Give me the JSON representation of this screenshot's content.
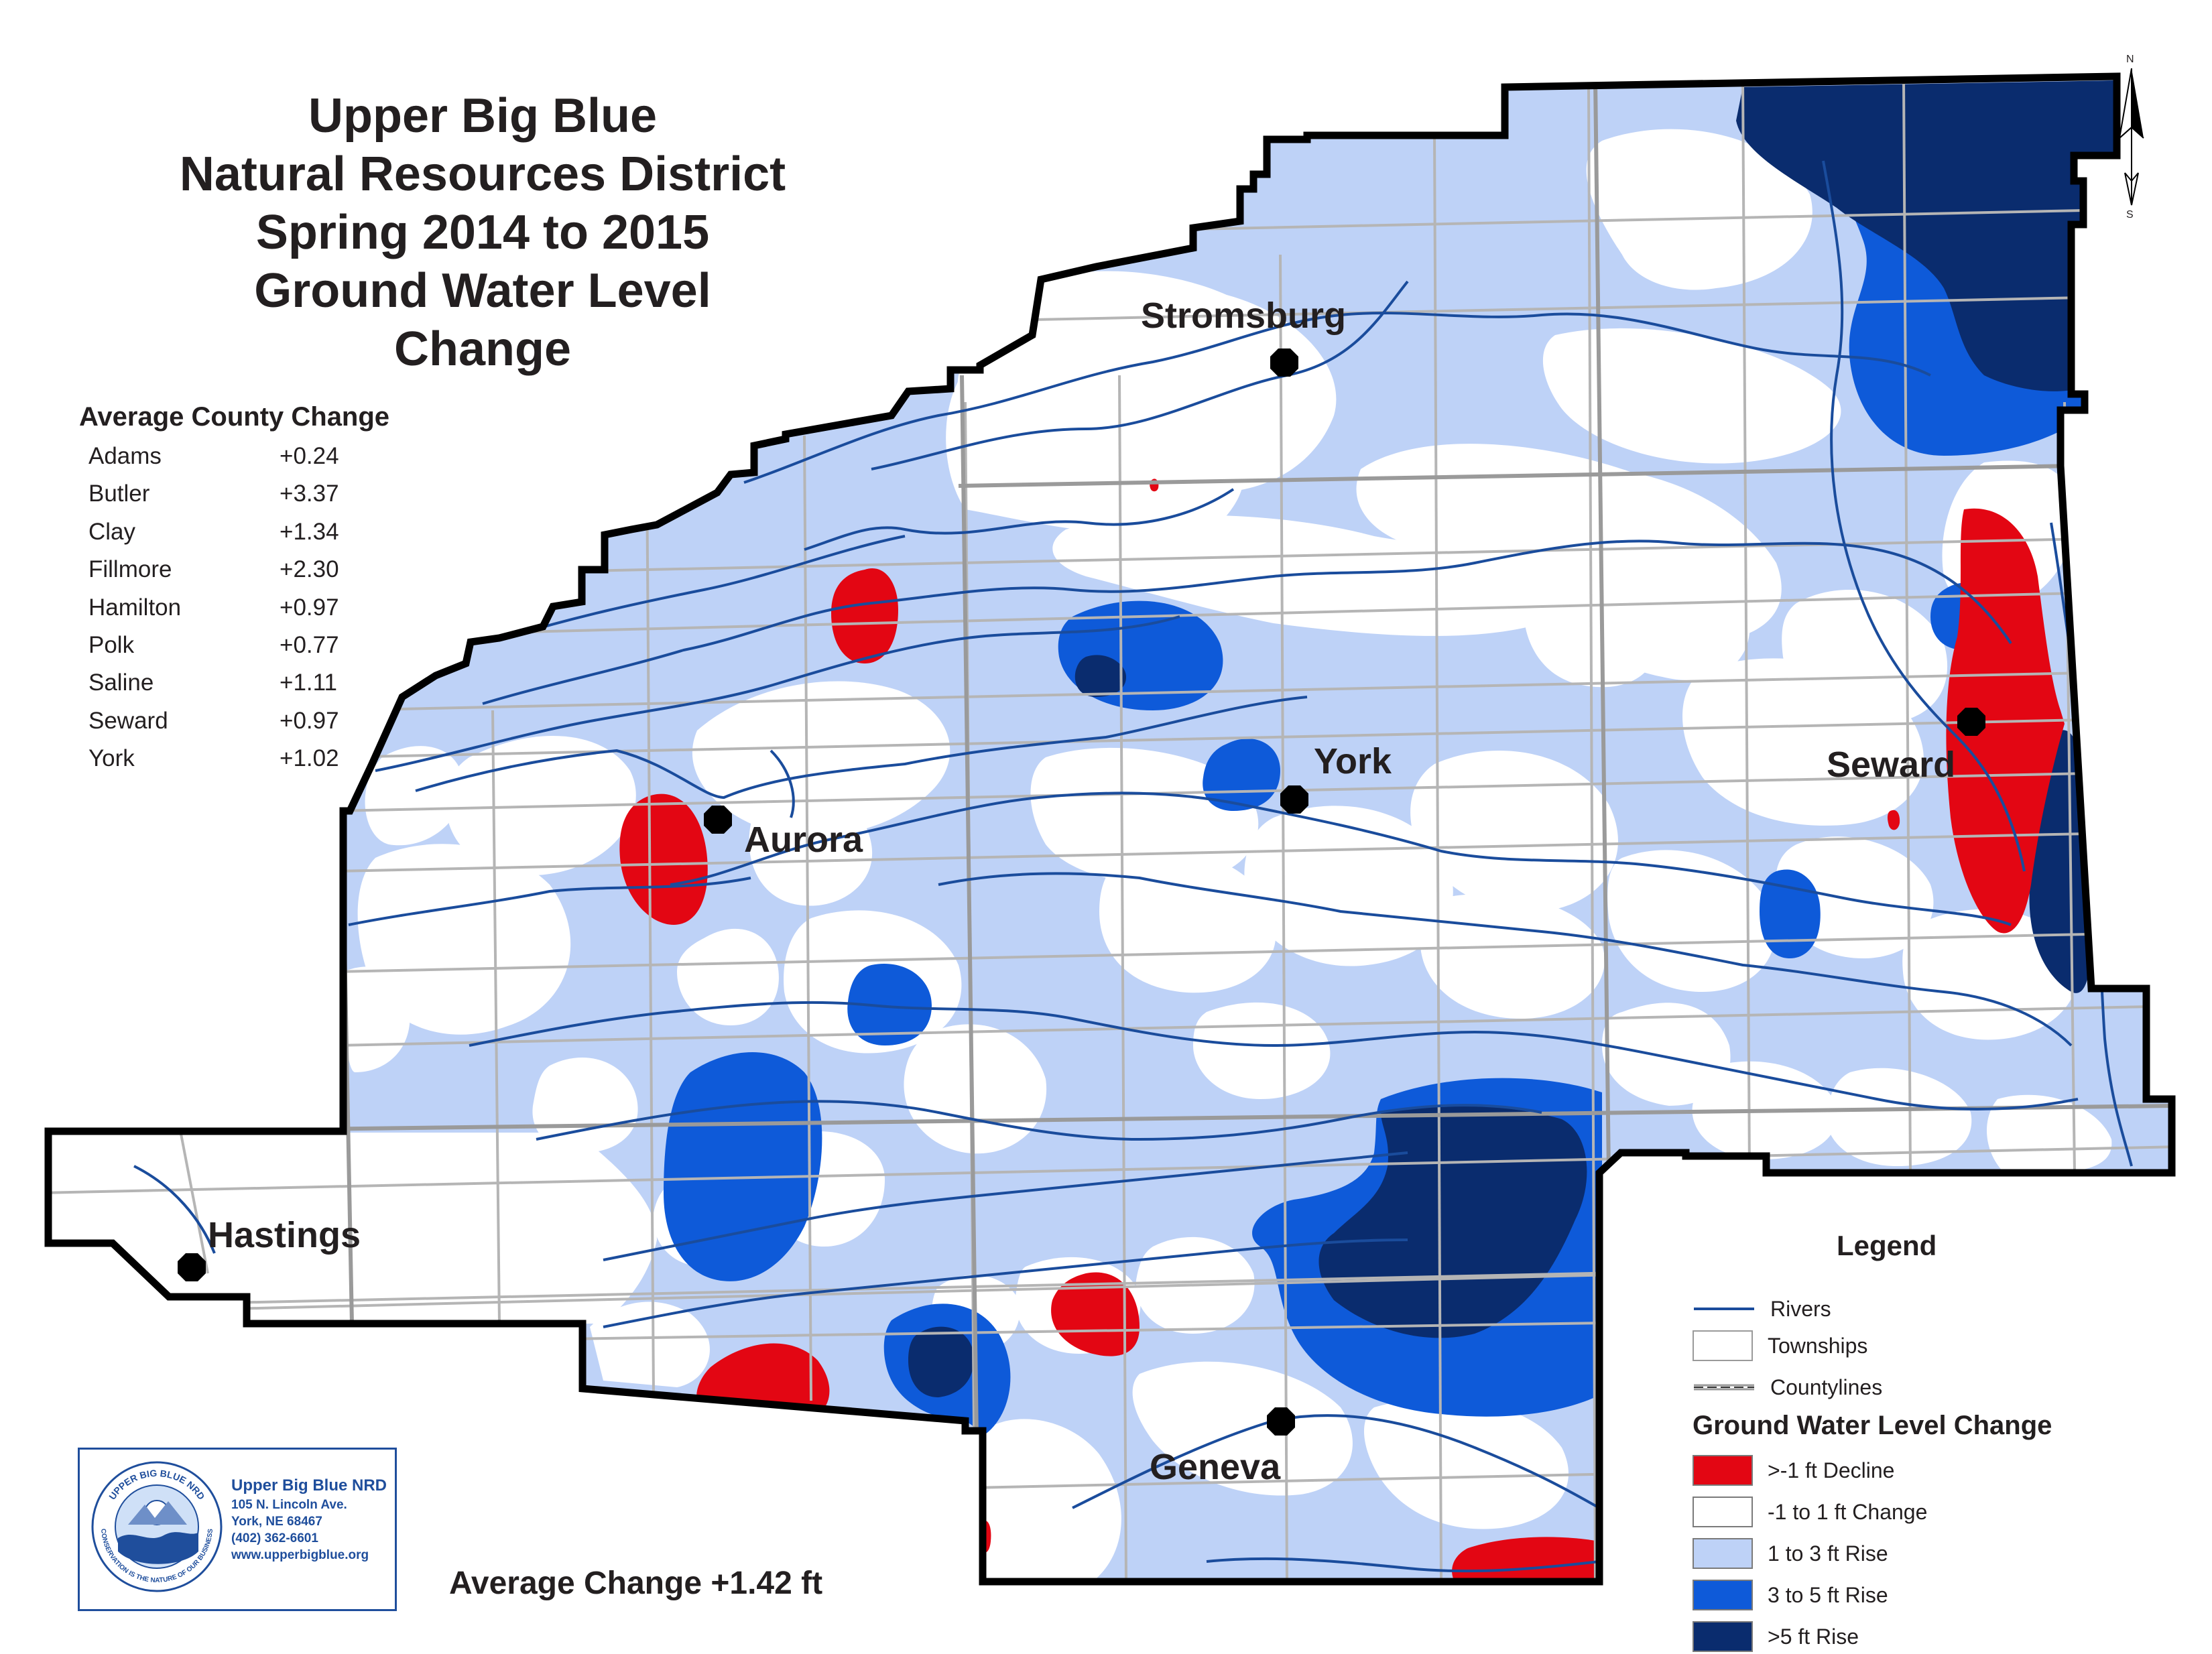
{
  "title_lines": [
    "Upper Big Blue",
    "Natural Resources District",
    "Spring 2014 to 2015",
    "Ground Water Level",
    "Change"
  ],
  "county_change": {
    "heading": "Average County Change",
    "rows": [
      {
        "name": "Adams",
        "value": "+0.24"
      },
      {
        "name": "Butler",
        "value": "+3.37"
      },
      {
        "name": "Clay",
        "value": "+1.34"
      },
      {
        "name": "Fillmore",
        "value": "+2.30"
      },
      {
        "name": "Hamilton",
        "value": "+0.97"
      },
      {
        "name": "Polk",
        "value": "+0.77"
      },
      {
        "name": "Saline",
        "value": "+1.11"
      },
      {
        "name": "Seward",
        "value": "+0.97"
      },
      {
        "name": "York",
        "value": "+1.02"
      }
    ]
  },
  "cities": {
    "stromsburg": "Stromsburg",
    "york": "York",
    "aurora": "Aurora",
    "seward": "Seward",
    "hastings": "Hastings",
    "geneva": "Geneva"
  },
  "average_change": "Average Change +1.42 ft",
  "logo": {
    "ring_text": "UPPER BIG BLUE NRD",
    "motto": "CONSERVATION IS THE NATURE OF OUR BUSINESS",
    "org": "Upper Big Blue NRD",
    "address": "105 N. Lincoln Ave.",
    "city": "York, NE  68467",
    "phone": "(402) 362-6601",
    "website": "www.upperbigblue.org"
  },
  "legend": {
    "title": "Legend",
    "rivers": "Rivers",
    "townships": "Townships",
    "countylines": "Countylines",
    "gwl_title": "Ground Water Level Change",
    "classes": [
      {
        "label": ">-1 ft Decline",
        "color": "#e30613"
      },
      {
        "label": "-1 to 1 ft Change",
        "color": "#ffffff"
      },
      {
        "label": "1 to 3 ft Rise",
        "color": "#bed2f7"
      },
      {
        "label": "3 to 5 ft Rise",
        "color": "#0e5ad9"
      },
      {
        "label": ">5 ft Rise",
        "color": "#0a2c6e"
      }
    ]
  },
  "north_arrow": {
    "n": "N",
    "s": "S"
  },
  "colors": {
    "decline": "#e30613",
    "no_change": "#ffffff",
    "rise_1_3": "#bed2f7",
    "rise_3_5": "#0e5ad9",
    "rise_5": "#0a2c6e",
    "river": "#1a4c9c",
    "township": "#b5b5b5",
    "countyline": "#9a9a9a",
    "boundary": "#000000"
  }
}
